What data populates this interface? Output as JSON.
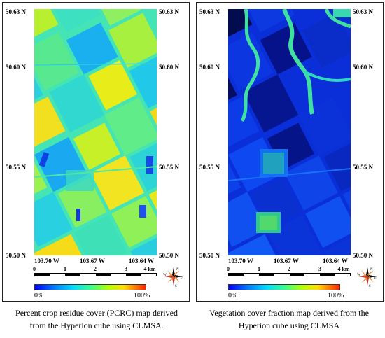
{
  "panels": {
    "left": {
      "lat_top": "50.63 N",
      "lat_2": "50.60 N",
      "lat_3": "50.55 N",
      "lat_bottom": "50.50 N",
      "lon_1": "103.70 W",
      "lon_2": "103.67 W",
      "lon_3": "103.64 W",
      "scale": [
        "0",
        "1",
        "2",
        "3",
        "4 km"
      ],
      "color_min": "0%",
      "color_max": "100%",
      "caption_line1": "Percent crop residue cover (PCRC) map derived",
      "caption_line2": "from the Hyperion cube using CLMSA."
    },
    "right": {
      "lat_top": "50.63 N",
      "lat_2": "50.60 N",
      "lat_3": "50.55 N",
      "lat_bottom": "50.50 N",
      "lon_1": "103.70 W",
      "lon_2": "103.67 W",
      "lon_3": "103.64 W",
      "scale": [
        "0",
        "1",
        "2",
        "3",
        "4 km"
      ],
      "color_min": "0%",
      "color_max": "100%",
      "caption_line1": "Vegetation cover fraction map derived from the",
      "caption_line2": "Hyperion cube using CLMSA"
    }
  },
  "compass": {
    "n": "N",
    "s": "S",
    "e": "E",
    "w": "W"
  },
  "colors": {
    "ramp": [
      "#0000ff",
      "#0080ff",
      "#00e0ff",
      "#40ff80",
      "#b0ff00",
      "#ffe000",
      "#ff7000",
      "#ff2000"
    ],
    "left_base": "#3fe2b0",
    "right_base": "#0a2fd8"
  }
}
